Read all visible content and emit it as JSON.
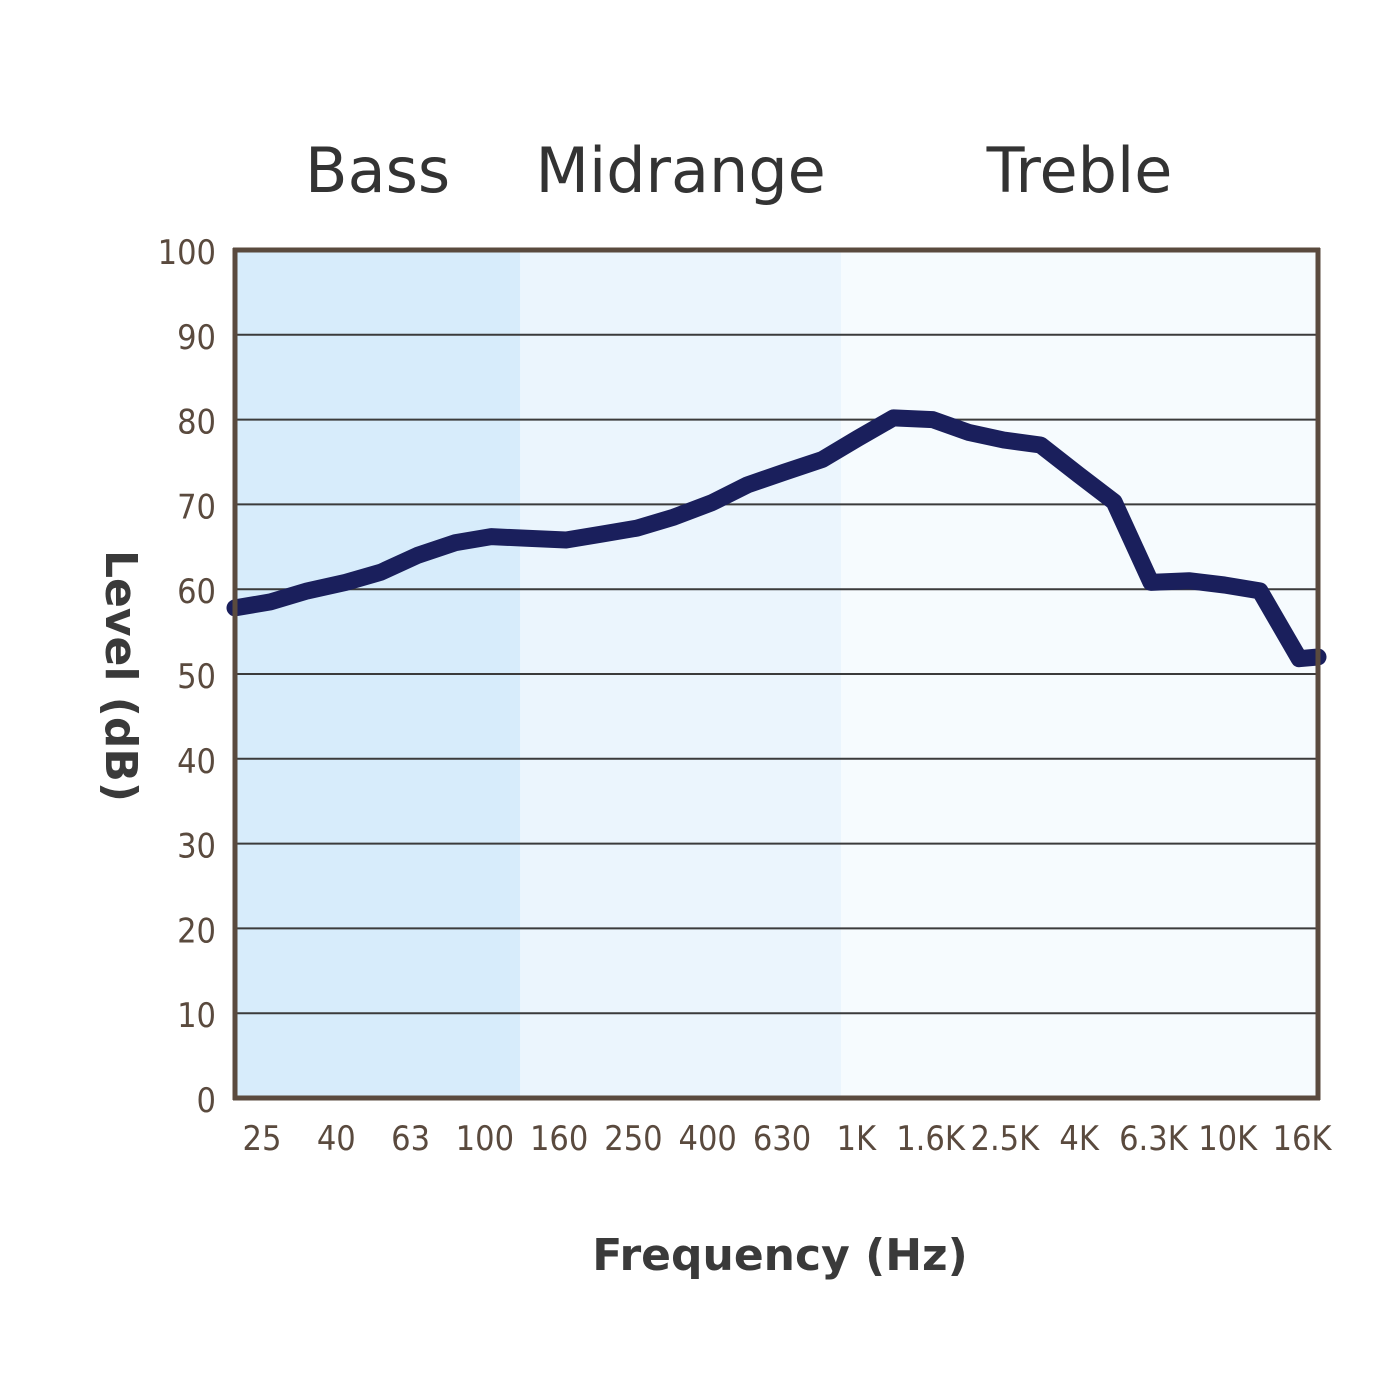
{
  "chart_data": {
    "type": "line",
    "title": "",
    "xlabel": "Frequency (Hz)",
    "ylabel": "Level (dB)",
    "ylim": [
      0,
      100
    ],
    "yticks": [
      0,
      10,
      20,
      30,
      40,
      50,
      60,
      70,
      80,
      90,
      100
    ],
    "x_tick_labels": [
      "25",
      "40",
      "63",
      "100",
      "160",
      "250",
      "400",
      "630",
      "1K",
      "1.6K",
      "2.5K",
      "4K",
      "6.3K",
      "10K",
      "16K"
    ],
    "x_scale": "log",
    "grid": "horizontal",
    "bands": [
      {
        "label": "Bass",
        "from": 20,
        "to": 120,
        "color": "#d7ecfb"
      },
      {
        "label": "Midrange",
        "from": 120,
        "to": 900,
        "color": "#ebf5fd"
      },
      {
        "label": "Treble",
        "from": 900,
        "to": 18000,
        "color": "#f6fbfe"
      }
    ],
    "series": [
      {
        "color": "#1a1f5c",
        "x": [
          20,
          25,
          31.5,
          40,
          50,
          63,
          80,
          100,
          125,
          160,
          200,
          250,
          315,
          400,
          500,
          630,
          800,
          1000,
          1250,
          1600,
          2000,
          2500,
          3150,
          4000,
          5000,
          6300,
          8000,
          10000,
          12500,
          16000,
          18000
        ],
        "values": [
          57.8,
          58.5,
          59.8,
          60.8,
          62.0,
          64.0,
          65.5,
          66.2,
          66.0,
          65.8,
          66.5,
          67.2,
          68.5,
          70.2,
          72.3,
          73.8,
          75.3,
          77.8,
          80.2,
          80.0,
          78.5,
          77.6,
          77.0,
          73.5,
          70.3,
          60.8,
          61.0,
          60.5,
          59.8,
          51.8,
          52.0
        ]
      }
    ]
  }
}
